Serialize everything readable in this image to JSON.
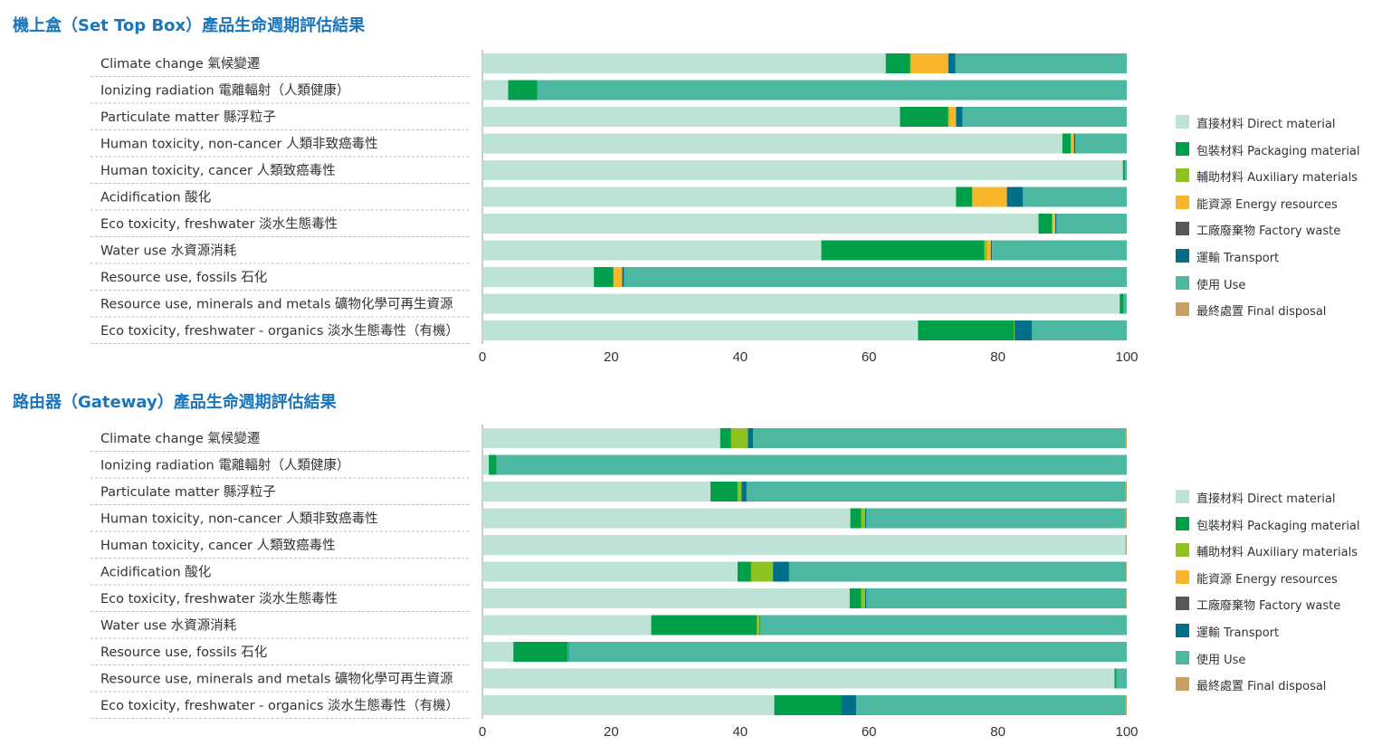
{
  "colors": {
    "direct_material": "#bde3d7",
    "packaging_material": "#00a04b",
    "auxiliary_materials": "#8dc21f",
    "energy_resources": "#f8b62d",
    "factory_waste": "#595757",
    "transport": "#00708a",
    "use": "#4db8a1",
    "final_disposal": "#c8a063",
    "title": "#1a75bb"
  },
  "legend": [
    {
      "key": "direct_material",
      "label": "直接材料 Direct material"
    },
    {
      "key": "packaging_material",
      "label": "包裝材料 Packaging material"
    },
    {
      "key": "auxiliary_materials",
      "label": "輔助材料 Auxiliary materials"
    },
    {
      "key": "energy_resources",
      "label": "能資源 Energy resources"
    },
    {
      "key": "factory_waste",
      "label": "工廠廢棄物 Factory waste"
    },
    {
      "key": "transport",
      "label": "運輸 Transport"
    },
    {
      "key": "use",
      "label": "使用 Use"
    },
    {
      "key": "final_disposal",
      "label": "最終處置 Final disposal"
    }
  ],
  "panels": {
    "stb": {
      "title": "機上盒（Set Top Box）產品生命週期評估結果"
    },
    "gateway": {
      "title": "路由器（Gateway）產品生命週期評估結果"
    }
  },
  "chart_data": [
    {
      "type": "bar",
      "orientation": "horizontal",
      "stacked": true,
      "title": "機上盒（Set Top Box）產品生命週期評估結果",
      "xlim": [
        0,
        100
      ],
      "xticks": [
        "0",
        "20",
        "40",
        "60",
        "80",
        "100"
      ],
      "categories": [
        "Climate change 氣候變遷",
        "Ionizing radiation 電離輻射（人類健康）",
        "Particulate matter 縣浮粒子",
        "Human toxicity, non-cancer 人類非致癌毒性",
        "Human toxicity, cancer 人類致癌毒性",
        "Acidification 酸化",
        "Eco toxicity, freshwater 淡水生態毒性",
        "Water use 水資源消耗",
        "Resource use, fossils 石化",
        "Resource use, minerals and metals 礦物化學可再生資源",
        "Eco toxicity, freshwater - organics 淡水生態毒性（有機）"
      ],
      "legend_position": "right",
      "series": [
        {
          "name": "直接材料 Direct material",
          "key": "direct_material",
          "values": [
            62.6,
            4.0,
            64.8,
            90.0,
            99.4,
            73.5,
            86.3,
            52.6,
            17.3,
            98.9,
            67.6
          ]
        },
        {
          "name": "包裝材料 Packaging material",
          "key": "packaging_material",
          "values": [
            3.8,
            4.5,
            7.5,
            1.3,
            0.3,
            2.5,
            2.1,
            25.3,
            3.0,
            0.6,
            14.9
          ]
        },
        {
          "name": "輔助材料 Auxiliary materials",
          "key": "auxiliary_materials",
          "values": [
            0.1,
            0.0,
            0.1,
            0.1,
            0.0,
            0.1,
            0.1,
            0.4,
            0.1,
            0.0,
            0.1
          ]
        },
        {
          "name": "能資源 Energy resources",
          "key": "energy_resources",
          "values": [
            5.8,
            0.0,
            1.1,
            0.4,
            0.0,
            5.3,
            0.4,
            0.6,
            1.3,
            0.0,
            0.0
          ]
        },
        {
          "name": "工廠廢棄物 Factory waste",
          "key": "factory_waste",
          "values": [
            0.0,
            0.0,
            0.0,
            0.0,
            0.0,
            0.0,
            0.0,
            0.0,
            0.0,
            0.0,
            0.0
          ]
        },
        {
          "name": "運輸 Transport",
          "key": "transport",
          "values": [
            1.1,
            0.0,
            1.0,
            0.2,
            0.0,
            2.5,
            0.2,
            0.2,
            0.3,
            0.0,
            2.7
          ]
        },
        {
          "name": "使用 Use",
          "key": "use",
          "values": [
            26.6,
            91.5,
            25.5,
            8.0,
            0.3,
            16.1,
            10.9,
            20.9,
            78.0,
            0.5,
            14.7
          ]
        },
        {
          "name": "最終處置 Final disposal",
          "key": "final_disposal",
          "values": [
            0.0,
            0.0,
            0.0,
            0.0,
            0.0,
            0.0,
            0.0,
            0.0,
            0.0,
            0.0,
            0.0
          ]
        }
      ]
    },
    {
      "type": "bar",
      "orientation": "horizontal",
      "stacked": true,
      "title": "路由器（Gateway）產品生命週期評估結果",
      "xlim": [
        0,
        100
      ],
      "xticks": [
        "0",
        "20",
        "40",
        "60",
        "80",
        "100"
      ],
      "categories": [
        "Climate change 氣候變遷",
        "Ionizing radiation 電離輻射（人類健康）",
        "Particulate matter 縣浮粒子",
        "Human toxicity, non-cancer 人類非致癌毒性",
        "Human toxicity, cancer 人類致癌毒性",
        "Acidification 酸化",
        "Eco toxicity, freshwater 淡水生態毒性",
        "Water use 水資源消耗",
        "Resource use, fossils 石化",
        "Resource use, minerals and metals 礦物化學可再生資源",
        "Eco toxicity, freshwater - organics 淡水生態毒性（有機）"
      ],
      "legend_position": "right",
      "series": [
        {
          "name": "直接材料 Direct material",
          "key": "direct_material",
          "values": [
            36.9,
            1.0,
            35.4,
            57.1,
            99.8,
            39.6,
            57.0,
            26.2,
            4.8,
            98.1,
            45.3
          ]
        },
        {
          "name": "包裝材料 Packaging material",
          "key": "packaging_material",
          "values": [
            1.7,
            1.2,
            4.2,
            1.7,
            0.0,
            2.1,
            1.8,
            16.4,
            8.4,
            0.3,
            10.4
          ]
        },
        {
          "name": "輔助材料 Auxiliary materials",
          "key": "auxiliary_materials",
          "values": [
            2.6,
            0.0,
            0.6,
            0.6,
            0.0,
            3.4,
            0.6,
            0.4,
            0.1,
            0.0,
            0.0
          ]
        },
        {
          "name": "能資源 Energy resources",
          "key": "energy_resources",
          "values": [
            0.0,
            0.0,
            0.0,
            0.0,
            0.0,
            0.0,
            0.0,
            0.0,
            0.0,
            0.0,
            0.0
          ]
        },
        {
          "name": "工廠廢棄物 Factory waste",
          "key": "factory_waste",
          "values": [
            0.0,
            0.0,
            0.0,
            0.0,
            0.0,
            0.0,
            0.0,
            0.0,
            0.0,
            0.0,
            0.0
          ]
        },
        {
          "name": "運輸 Transport",
          "key": "transport",
          "values": [
            0.8,
            0.0,
            0.8,
            0.2,
            0.0,
            2.5,
            0.2,
            0.1,
            0.1,
            0.0,
            2.3
          ]
        },
        {
          "name": "使用 Use",
          "key": "use",
          "values": [
            57.8,
            97.8,
            58.8,
            40.2,
            0.1,
            52.3,
            40.3,
            56.9,
            86.6,
            1.6,
            41.8
          ]
        },
        {
          "name": "最終處置 Final disposal",
          "key": "final_disposal",
          "values": [
            0.2,
            0.0,
            0.2,
            0.2,
            0.1,
            0.1,
            0.1,
            0.0,
            0.0,
            0.0,
            0.2
          ]
        }
      ]
    }
  ]
}
